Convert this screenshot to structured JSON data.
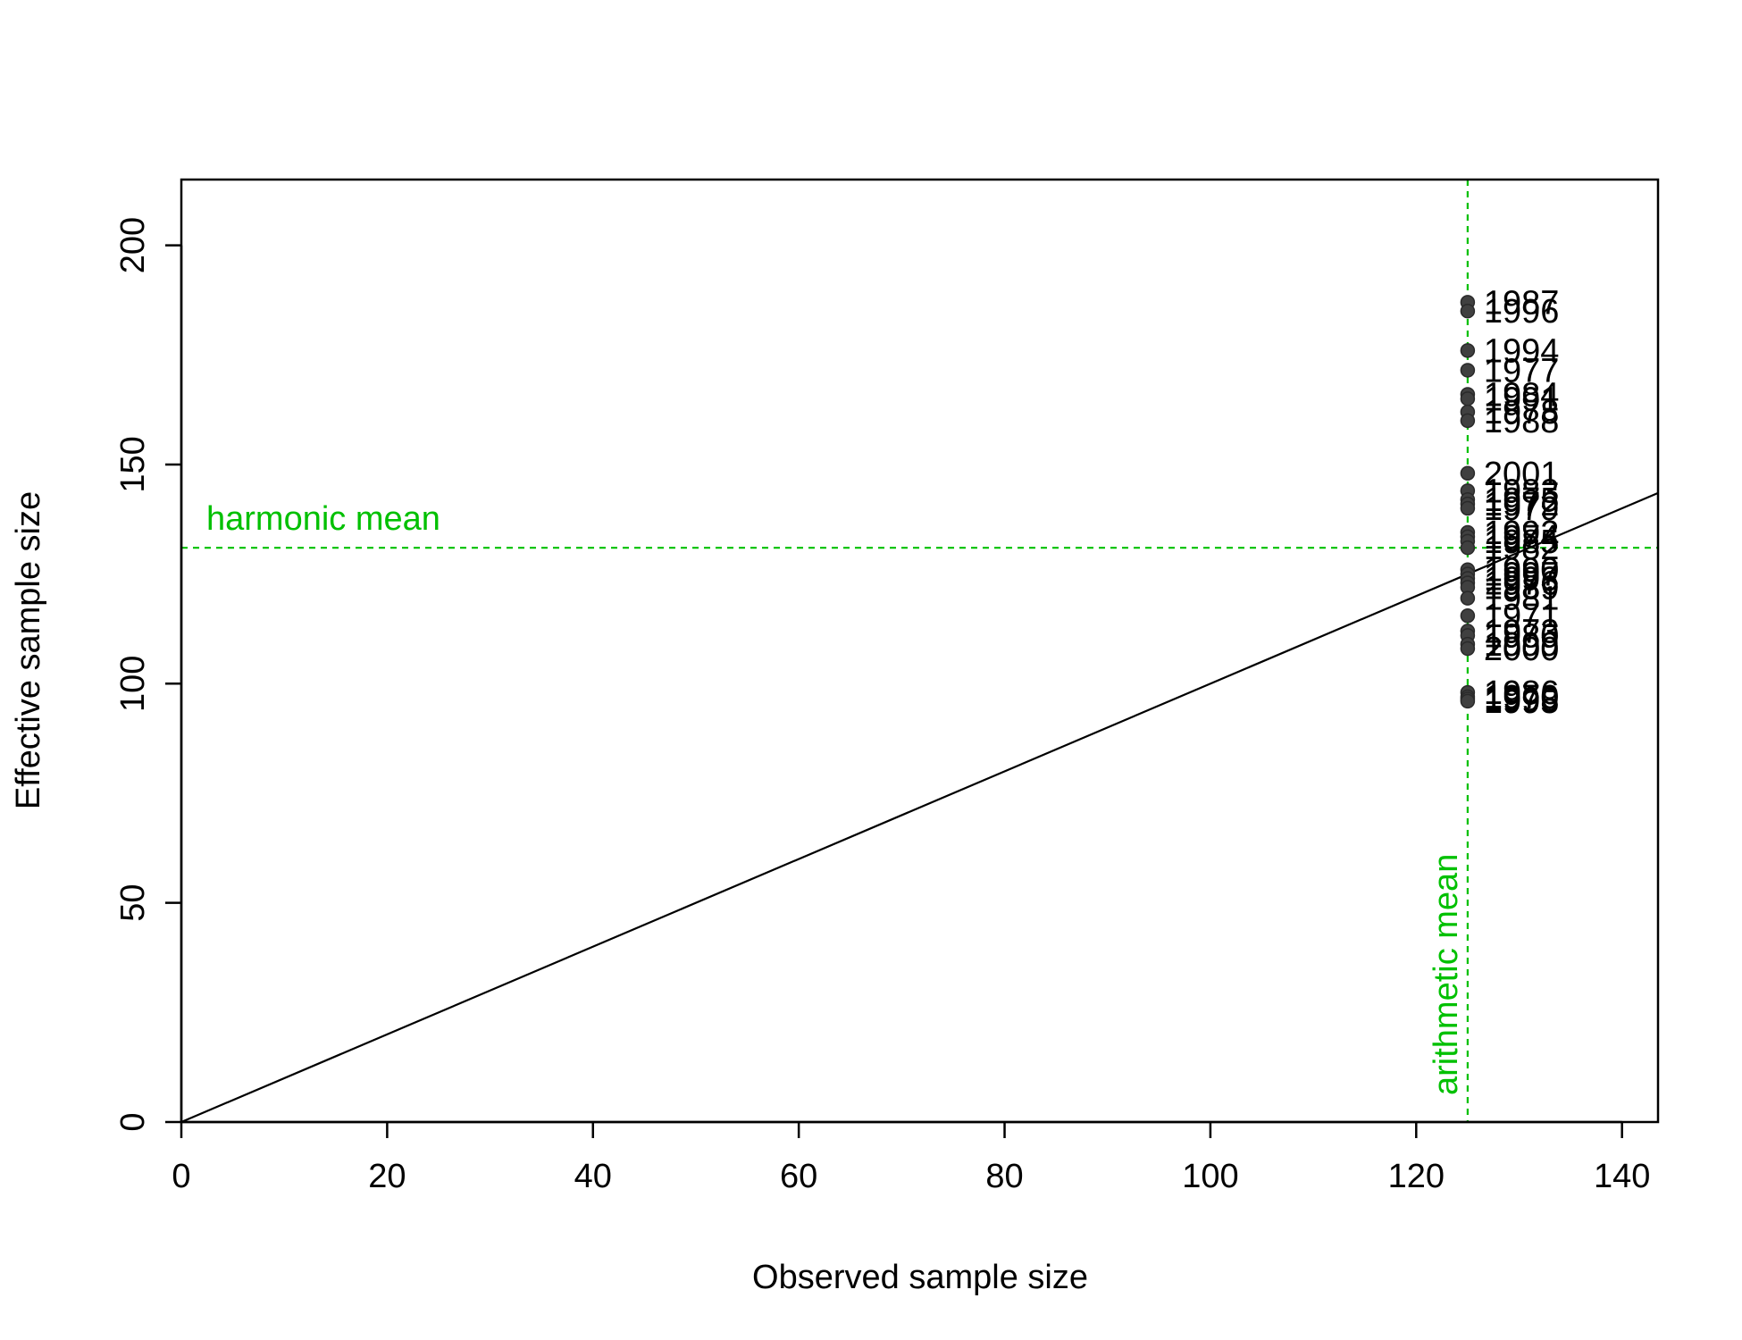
{
  "chart_data": {
    "type": "scatter",
    "title": "",
    "xlabel": "Observed sample size",
    "ylabel": "Effective sample size",
    "xlim": [
      0,
      143.5
    ],
    "ylim": [
      0,
      215
    ],
    "x_ticks": [
      0,
      20,
      40,
      60,
      80,
      100,
      120,
      140
    ],
    "y_ticks": [
      0,
      50,
      100,
      150,
      200
    ],
    "grid": false,
    "point_color": "#404040",
    "line_color": "#000000",
    "mean_color": "#00c000",
    "reference_line": {
      "slope": 1,
      "intercept": 0
    },
    "harmonic_mean": {
      "value": 131,
      "label": "harmonic mean"
    },
    "arithmetic_mean": {
      "value": 125,
      "label": "arithmetic mean"
    },
    "points": [
      {
        "x": 125,
        "y": 187,
        "label": "1987"
      },
      {
        "x": 125,
        "y": 185,
        "label": "1996"
      },
      {
        "x": 125,
        "y": 176,
        "label": "1994"
      },
      {
        "x": 125,
        "y": 171.5,
        "label": "1977"
      },
      {
        "x": 125,
        "y": 166,
        "label": "1984"
      },
      {
        "x": 125,
        "y": 165,
        "label": "1991"
      },
      {
        "x": 125,
        "y": 162,
        "label": "1978"
      },
      {
        "x": 125,
        "y": 160,
        "label": "1988"
      },
      {
        "x": 125,
        "y": 148,
        "label": "2001"
      },
      {
        "x": 125,
        "y": 144,
        "label": "1983"
      },
      {
        "x": 125,
        "y": 142,
        "label": "1975"
      },
      {
        "x": 125,
        "y": 141,
        "label": "1972"
      },
      {
        "x": 125,
        "y": 140,
        "label": "1979"
      },
      {
        "x": 125,
        "y": 134.5,
        "label": "1992"
      },
      {
        "x": 125,
        "y": 133.5,
        "label": "1974"
      },
      {
        "x": 125,
        "y": 132.5,
        "label": "1985"
      },
      {
        "x": 125,
        "y": 131,
        "label": "1982"
      },
      {
        "x": 125,
        "y": 126,
        "label": "1990"
      },
      {
        "x": 125,
        "y": 125,
        "label": "1997"
      },
      {
        "x": 125,
        "y": 124,
        "label": "1993"
      },
      {
        "x": 125,
        "y": 123,
        "label": "1976"
      },
      {
        "x": 125,
        "y": 122,
        "label": "1989"
      },
      {
        "x": 125,
        "y": 119.5,
        "label": "1981"
      },
      {
        "x": 125,
        "y": 115.5,
        "label": "1971"
      },
      {
        "x": 125,
        "y": 112,
        "label": "1973"
      },
      {
        "x": 125,
        "y": 111,
        "label": "1980"
      },
      {
        "x": 125,
        "y": 109,
        "label": "1999"
      },
      {
        "x": 125,
        "y": 108,
        "label": "2000"
      },
      {
        "x": 125,
        "y": 98,
        "label": "1986"
      },
      {
        "x": 125,
        "y": 97,
        "label": "1970"
      },
      {
        "x": 125,
        "y": 96.5,
        "label": "1998"
      },
      {
        "x": 125,
        "y": 96,
        "label": "1995"
      }
    ]
  }
}
